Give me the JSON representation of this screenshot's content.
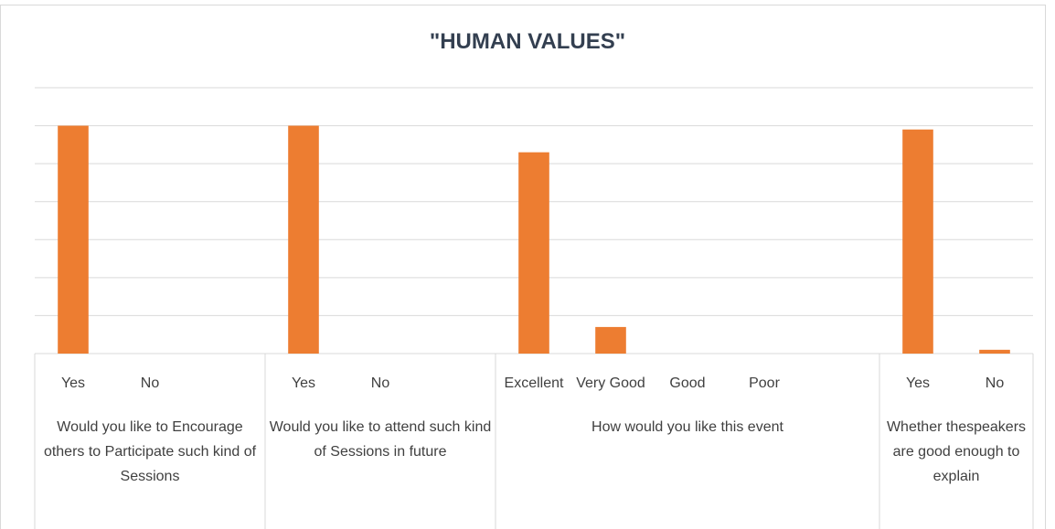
{
  "chart_data": {
    "type": "bar",
    "title": "\"HUMAN VALUES\"",
    "color": "#ed7d31",
    "ylim": [
      0,
      7
    ],
    "yticks": [
      0,
      1,
      2,
      3,
      4,
      5,
      6,
      7
    ],
    "grid": true,
    "groups": [
      {
        "label": "Would you like to Encourage others to Participate such kind of Sessions",
        "categories": [
          "Yes",
          "No",
          null
        ],
        "values": [
          6,
          0,
          null
        ]
      },
      {
        "label": "Would you like to attend such kind of Sessions in future",
        "categories": [
          "Yes",
          "No",
          null
        ],
        "values": [
          6,
          0,
          null
        ]
      },
      {
        "label": "How would you like this event",
        "categories": [
          "Excellent",
          "Very Good",
          "Good",
          "Poor",
          null
        ],
        "values": [
          5.3,
          0.7,
          0,
          0,
          null
        ]
      },
      {
        "label": "Whether thespeakers are good enough to explain",
        "categories": [
          "Yes",
          "No"
        ],
        "values": [
          5.9,
          0.1
        ]
      }
    ]
  }
}
